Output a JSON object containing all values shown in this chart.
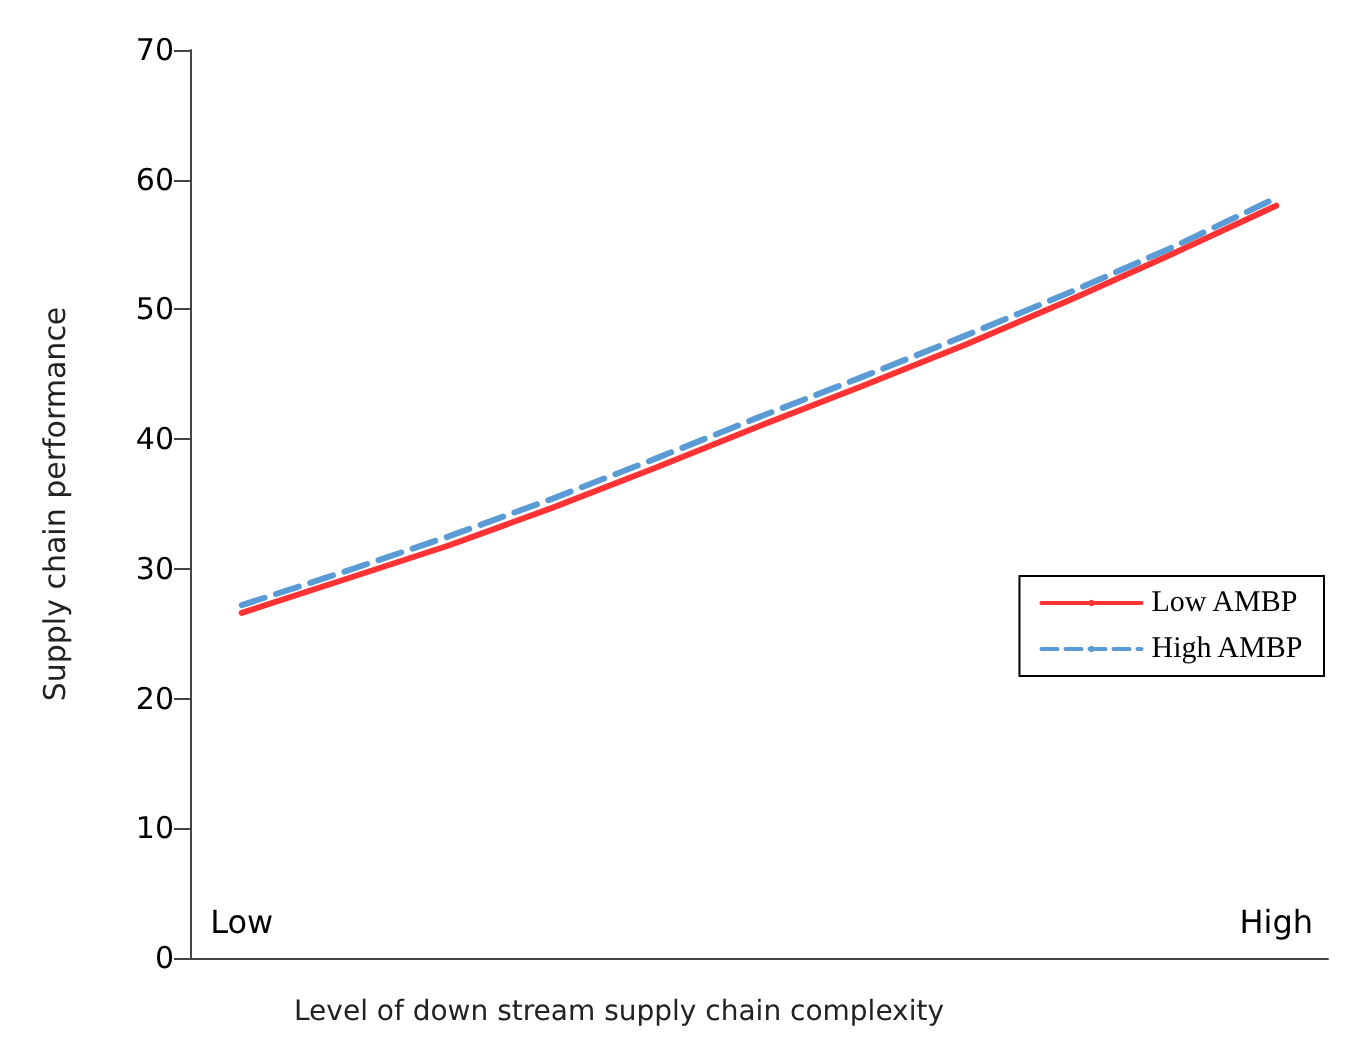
{
  "chart_data": {
    "type": "line",
    "xlabel": "Level of down stream supply chain complexity",
    "ylabel": "Supply chain performance",
    "categories": [
      "Low",
      null,
      null,
      null,
      null,
      null,
      null,
      null,
      null,
      null,
      "High"
    ],
    "series": [
      {
        "name": "Low AMBP",
        "color": "#ff3333",
        "line_style": "solid",
        "values": [
          26.6,
          29.2,
          31.8,
          34.7,
          37.8,
          41.0,
          44.1,
          47.3,
          50.7,
          54.3,
          58.0
        ]
      },
      {
        "name": "High AMBP",
        "color": "#5b9bd5",
        "line_style": "dashed",
        "values": [
          27.2,
          29.8,
          32.5,
          35.4,
          38.5,
          41.7,
          44.8,
          48.0,
          51.3,
          54.8,
          58.6
        ]
      }
    ],
    "ylim": [
      0,
      70
    ],
    "yticks": [
      0,
      10,
      20,
      30,
      40,
      50,
      60,
      70
    ],
    "grid": false,
    "legend": "right",
    "marker": "none"
  }
}
